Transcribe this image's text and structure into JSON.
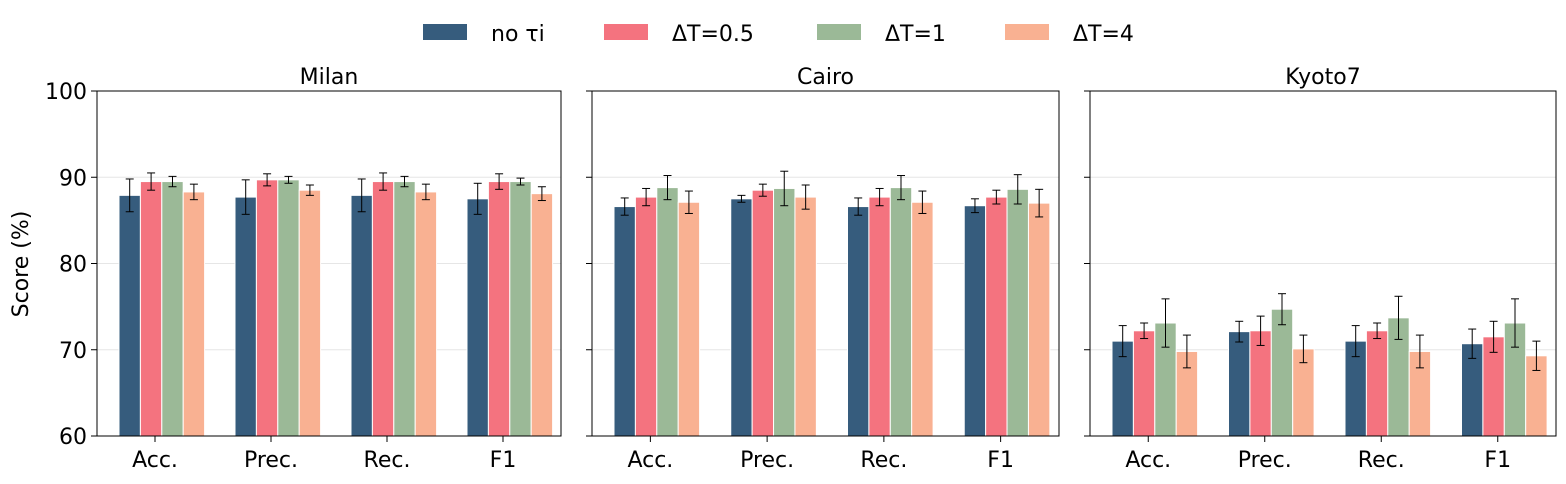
{
  "chart_data": {
    "type": "bar",
    "ylabel": "Score (%)",
    "ylim": [
      60,
      100
    ],
    "yticks": [
      "60",
      "70",
      "80",
      "90",
      "100"
    ],
    "legend_position": "top-center",
    "series": [
      {
        "name": "no τi",
        "color": "#365c7d"
      },
      {
        "name": "ΔT=0.5",
        "color": "#f4737f"
      },
      {
        "name": "ΔT=1",
        "color": "#9bb997"
      },
      {
        "name": "ΔT=4",
        "color": "#f9b192"
      }
    ],
    "categories": [
      "Acc.",
      "Prec.",
      "Rec.",
      "F1"
    ],
    "panels": [
      {
        "title": "Milan",
        "values": [
          [
            87.9,
            87.7,
            87.9,
            87.5
          ],
          [
            89.5,
            89.7,
            89.5,
            89.5
          ],
          [
            89.5,
            89.7,
            89.5,
            89.5
          ],
          [
            88.3,
            88.5,
            88.3,
            88.1
          ]
        ],
        "errors": [
          [
            1.9,
            2.0,
            1.9,
            1.8
          ],
          [
            1.0,
            0.7,
            1.0,
            0.9
          ],
          [
            0.6,
            0.4,
            0.6,
            0.4
          ],
          [
            0.9,
            0.6,
            0.9,
            0.8
          ]
        ]
      },
      {
        "title": "Cairo",
        "values": [
          [
            86.6,
            87.5,
            86.6,
            86.7
          ],
          [
            87.7,
            88.5,
            87.7,
            87.7
          ],
          [
            88.8,
            88.7,
            88.8,
            88.6
          ],
          [
            87.1,
            87.7,
            87.1,
            87.0
          ]
        ],
        "errors": [
          [
            1.0,
            0.4,
            1.0,
            0.8
          ],
          [
            1.0,
            0.7,
            1.0,
            0.8
          ],
          [
            1.4,
            2.0,
            1.4,
            1.7
          ],
          [
            1.3,
            1.4,
            1.3,
            1.6
          ]
        ]
      },
      {
        "title": "Kyoto7",
        "values": [
          [
            71.0,
            72.1,
            71.0,
            70.7
          ],
          [
            72.2,
            72.2,
            72.2,
            71.5
          ],
          [
            73.1,
            74.7,
            73.7,
            73.1
          ],
          [
            69.8,
            70.1,
            69.8,
            69.3
          ]
        ],
        "errors": [
          [
            1.8,
            1.2,
            1.8,
            1.7
          ],
          [
            0.9,
            1.7,
            0.9,
            1.8
          ],
          [
            2.8,
            1.8,
            2.5,
            2.8
          ],
          [
            1.9,
            1.6,
            1.9,
            1.7
          ]
        ]
      }
    ]
  }
}
